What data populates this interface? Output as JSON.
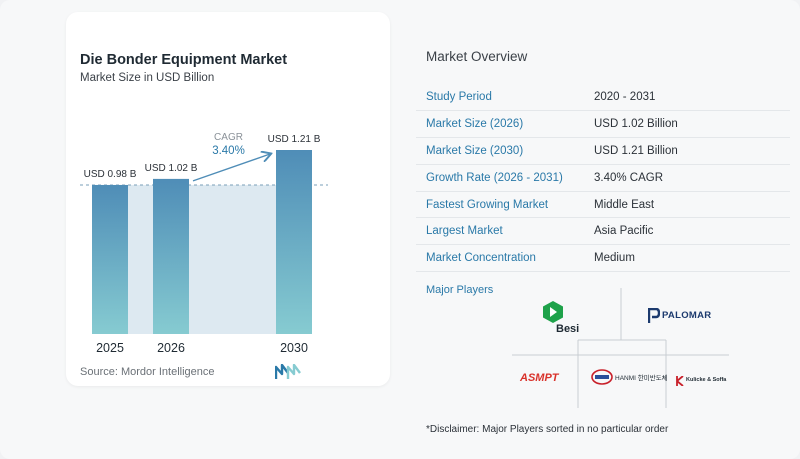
{
  "chart_data": {
    "type": "bar",
    "title": "Die Bonder Equipment Market",
    "subtitle": "Market Size in USD Billion",
    "categories": [
      "2025",
      "2026",
      "2030"
    ],
    "values": [
      0.98,
      1.02,
      1.21
    ],
    "value_labels": [
      "USD 0.98 B",
      "USD 1.02 B",
      "USD 1.21 B"
    ],
    "ylim": [
      0,
      1.21
    ],
    "annotation": {
      "label": "CAGR",
      "value": "3.40%"
    },
    "bar_color_top": "#4f8db7",
    "bar_color_bottom": "#86cbd1",
    "band_color": "#dde9f1"
  },
  "source": "Source:  Mordor Intelligence",
  "overview": {
    "title": "Market Overview",
    "rows": [
      {
        "label": "Study Period",
        "value": "2020 - 2031"
      },
      {
        "label": "Market Size (2026)",
        "value": "USD 1.02 Billion"
      },
      {
        "label": "Market Size (2030)",
        "value": "USD 1.21 Billion"
      },
      {
        "label": "Growth Rate (2026 - 2031)",
        "value": "3.40% CAGR"
      },
      {
        "label": "Fastest Growing Market",
        "value": "Middle East"
      },
      {
        "label": "Largest Market",
        "value": "Asia Pacific"
      },
      {
        "label": "Market Concentration",
        "value": "Medium"
      }
    ]
  },
  "players": {
    "title": "Major Players",
    "logos": [
      {
        "name": "Besi",
        "color": "#1ea24a"
      },
      {
        "name": "PALOMAR",
        "color": "#1c3a6e"
      },
      {
        "name": "ASMPT",
        "color": "#d9322b"
      },
      {
        "name": "HANMI 한미반도체",
        "color": "#c8202a"
      },
      {
        "name": "Kulicke & Soffa",
        "color": "#1f2a33"
      }
    ]
  },
  "disclaimer": "*Disclaimer: Major Players sorted in no particular order"
}
